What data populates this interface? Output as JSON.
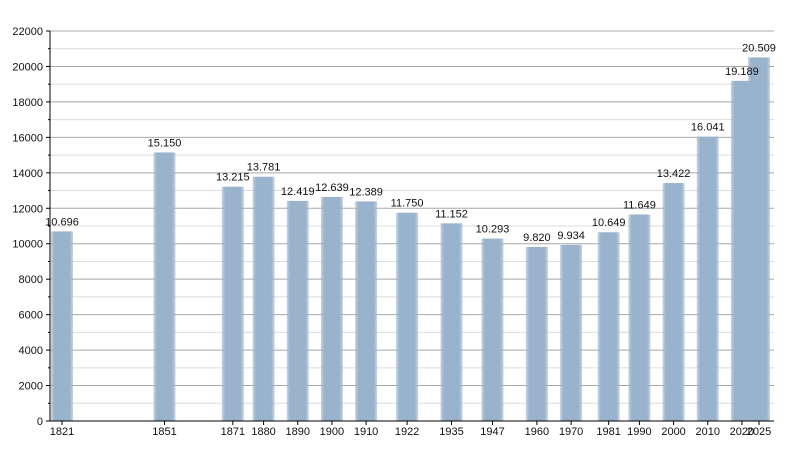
{
  "chart_data": {
    "type": "bar",
    "title": "",
    "xlabel": "",
    "ylabel": "",
    "ylim": [
      0,
      22000
    ],
    "yticks": [
      0,
      2000,
      4000,
      6000,
      8000,
      10000,
      12000,
      14000,
      16000,
      18000,
      20000,
      22000
    ],
    "grid": true,
    "categories": [
      "1821",
      "1851",
      "1871",
      "1880",
      "1890",
      "1900",
      "1910",
      "1922",
      "1935",
      "1947",
      "1960",
      "1970",
      "1981",
      "1990",
      "2000",
      "2010",
      "2020",
      "2025"
    ],
    "values": [
      10696,
      15150,
      13215,
      13781,
      12419,
      12639,
      12389,
      11750,
      11152,
      10293,
      9820,
      9934,
      10649,
      11649,
      13422,
      16041,
      19189,
      20509
    ],
    "value_labels": [
      "10.696",
      "15.150",
      "13.215",
      "13.781",
      "12.419",
      "12.639",
      "12.389",
      "11.750",
      "11.152",
      "10.293",
      "9.820",
      "9.934",
      "10.649",
      "11.649",
      "13.422",
      "16.041",
      "19.189",
      "20.509"
    ],
    "colors": {
      "bar": "#9ab3cc",
      "grid_major": "#a8a8a8",
      "grid_minor": "#dcdcdc",
      "axis": "#000000"
    }
  }
}
